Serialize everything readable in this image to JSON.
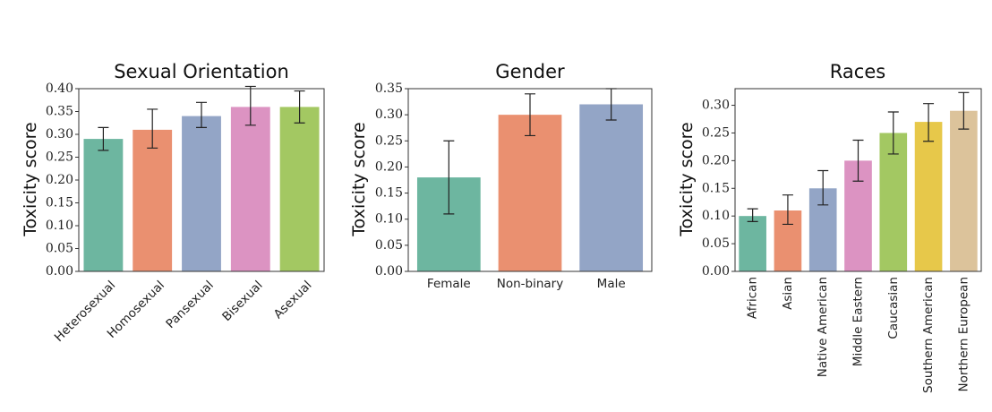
{
  "chart_data": [
    {
      "type": "bar",
      "title": "Sexual Orientation",
      "ylabel": "Toxicity score",
      "xlabel": "",
      "ylim": [
        0,
        0.4
      ],
      "yticks": [
        "0.00",
        "0.05",
        "0.10",
        "0.15",
        "0.20",
        "0.25",
        "0.30",
        "0.35",
        "0.40"
      ],
      "x_tick_rotation": "45",
      "categories": [
        "Heterosexual",
        "Homosexual",
        "Pansexual",
        "Bisexual",
        "Asexual"
      ],
      "values": [
        0.29,
        0.31,
        0.34,
        0.36,
        0.36
      ],
      "error_low": [
        0.265,
        0.27,
        0.315,
        0.32,
        0.325
      ],
      "error_high": [
        0.315,
        0.355,
        0.37,
        0.405,
        0.395
      ],
      "colors": [
        "#6db6a0",
        "#ea9070",
        "#93a5c6",
        "#dc93c2",
        "#a3c862"
      ],
      "grid": false
    },
    {
      "type": "bar",
      "title": "Gender",
      "ylabel": "Toxicity score",
      "xlabel": "",
      "ylim": [
        0,
        0.35
      ],
      "yticks": [
        "0.00",
        "0.05",
        "0.10",
        "0.15",
        "0.20",
        "0.25",
        "0.30",
        "0.35"
      ],
      "x_tick_rotation": "0",
      "categories": [
        "Female",
        "Non-binary",
        "Male"
      ],
      "values": [
        0.18,
        0.3,
        0.32
      ],
      "error_low": [
        0.11,
        0.26,
        0.29
      ],
      "error_high": [
        0.25,
        0.34,
        0.35
      ],
      "colors": [
        "#6db6a0",
        "#ea9070",
        "#93a5c6"
      ],
      "grid": false
    },
    {
      "type": "bar",
      "title": "Races",
      "ylabel": "Toxicity score",
      "xlabel": "",
      "ylim": [
        0,
        0.33
      ],
      "yticks": [
        "0.00",
        "0.05",
        "0.10",
        "0.15",
        "0.20",
        "0.25",
        "0.30"
      ],
      "x_tick_rotation": "90",
      "categories": [
        "African",
        "Asian",
        "Native American",
        "Middle Eastern",
        "Caucasian",
        "Southern American",
        "Northern European"
      ],
      "values": [
        0.1,
        0.11,
        0.15,
        0.2,
        0.25,
        0.27,
        0.29
      ],
      "error_low": [
        0.09,
        0.085,
        0.12,
        0.163,
        0.212,
        0.235,
        0.257
      ],
      "error_high": [
        0.113,
        0.138,
        0.182,
        0.237,
        0.288,
        0.303,
        0.323
      ],
      "colors": [
        "#6db6a0",
        "#ea9070",
        "#93a5c6",
        "#dc93c2",
        "#a3c862",
        "#e7c84a",
        "#dcc39b"
      ],
      "grid": false
    }
  ]
}
